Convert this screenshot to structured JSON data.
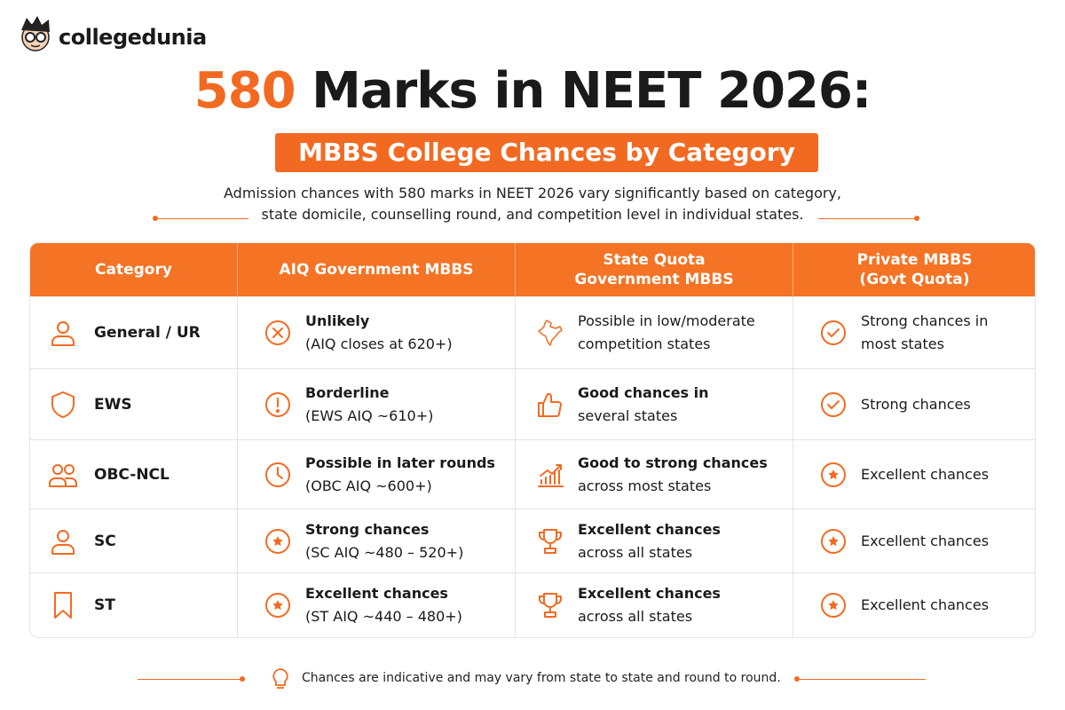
{
  "logo": "collegedunia",
  "title": {
    "highlight": "580",
    "rest": "Marks in NEET 2026:"
  },
  "subtitle": "MBBS College Chances by Category",
  "description": [
    "Admission chances with 580 marks in NEET 2026 vary significantly based on category,",
    "state domicile, counselling round, and competition level in individual states."
  ],
  "table": {
    "headers": [
      [
        "Category"
      ],
      [
        "AIQ Government MBBS"
      ],
      [
        "State Quota",
        "Government MBBS"
      ],
      [
        "Private MBBS",
        "(Govt Quota)"
      ]
    ],
    "rows": [
      {
        "category": "General / UR",
        "cells": [
          {
            "lines": [
              "Unlikely",
              "(AIQ closes at 620+)"
            ],
            "bold_lines": 1
          },
          {
            "lines": [
              "Possible in low/moderate",
              "competition states"
            ],
            "bold_lines": 0
          },
          {
            "lines": [
              "Strong chances in",
              "most states"
            ],
            "bold_lines": 0
          }
        ]
      },
      {
        "category": "EWS",
        "cells": [
          {
            "lines": [
              "Borderline",
              "(EWS AIQ ~610+)"
            ],
            "bold_lines": 1
          },
          {
            "lines": [
              "Good chances in",
              "several states"
            ],
            "bold_lines": 1
          },
          {
            "lines": [
              "Strong chances"
            ],
            "bold_lines": 0
          }
        ]
      },
      {
        "category": "OBC-NCL",
        "cells": [
          {
            "lines": [
              "Possible in later rounds",
              "(OBC AIQ ~600+)"
            ],
            "bold_lines": 1
          },
          {
            "lines": [
              "Good to strong chances",
              "across most states"
            ],
            "bold_lines": 1
          },
          {
            "lines": [
              "Excellent chances"
            ],
            "bold_lines": 0
          }
        ]
      },
      {
        "category": "SC",
        "cells": [
          {
            "lines": [
              "Strong chances",
              "(SC AIQ ~480 – 520+)"
            ],
            "bold_lines": 1
          },
          {
            "lines": [
              "Excellent chances",
              "across all states"
            ],
            "bold_lines": 1
          },
          {
            "lines": [
              "Excellent chances"
            ],
            "bold_lines": 0
          }
        ]
      },
      {
        "category": "ST",
        "cells": [
          {
            "lines": [
              "Excellent chances",
              "(ST AIQ ~440 – 480+)"
            ],
            "bold_lines": 1
          },
          {
            "lines": [
              "Excellent chances",
              "across all states"
            ],
            "bold_lines": 1
          },
          {
            "lines": [
              "Excellent chances"
            ],
            "bold_lines": 0
          }
        ]
      }
    ]
  },
  "note": "Chances are indicative and may vary from state to state and round to round."
}
